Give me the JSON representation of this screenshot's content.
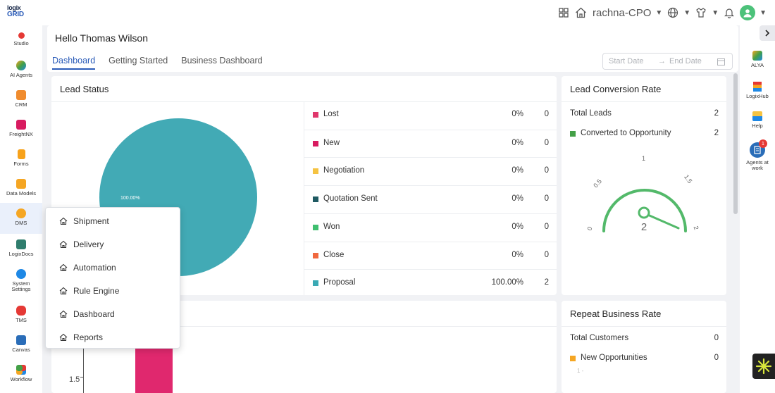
{
  "logo": {
    "line1": "logix",
    "line2": "GRID"
  },
  "topbar": {
    "user_label": "rachna-CPO"
  },
  "sidebar": {
    "items": [
      {
        "label": "Studio",
        "color": "#e53935"
      },
      {
        "label": "AI Agents",
        "color": "#f5a623"
      },
      {
        "label": "CRM",
        "color": "#f08c2e"
      },
      {
        "label": "FreightNX",
        "color": "#d81b60"
      },
      {
        "label": "Forms",
        "color": "#f7a21b"
      },
      {
        "label": "Data Models",
        "color": "#f5a623"
      },
      {
        "label": "DMS",
        "color": "#f5a623"
      },
      {
        "label": "LogixDocs",
        "color": "#2f7d6d"
      },
      {
        "label": "System Settings",
        "color": "#1e88e5"
      },
      {
        "label": "TMS",
        "color": "#e53935"
      },
      {
        "label": "Canvas",
        "color": "#2a6db8"
      },
      {
        "label": "Workflow",
        "color": "#43a047"
      }
    ]
  },
  "right_sidebar": {
    "items": [
      {
        "label": "ALYA"
      },
      {
        "label": "LogixHub"
      },
      {
        "label": "Help"
      },
      {
        "label": "Agents at work",
        "badge": "1"
      }
    ]
  },
  "header": {
    "greeting": "Hello Thomas Wilson",
    "tabs": [
      "Dashboard",
      "Getting Started",
      "Business Dashboard"
    ],
    "start_date_placeholder": "Start Date",
    "end_date_placeholder": "End Date"
  },
  "lead_status": {
    "title": "Lead Status",
    "pie_label": "100.00%",
    "rows": [
      {
        "name": "Lost",
        "percent": "0%",
        "count": "0",
        "color": "#e0376c"
      },
      {
        "name": "New",
        "percent": "0%",
        "count": "0",
        "color": "#d81b60"
      },
      {
        "name": "Negotiation",
        "percent": "0%",
        "count": "0",
        "color": "#f5c342"
      },
      {
        "name": "Quotation Sent",
        "percent": "0%",
        "count": "0",
        "color": "#1f5a62"
      },
      {
        "name": "Won",
        "percent": "0%",
        "count": "0",
        "color": "#3fbf6f"
      },
      {
        "name": "Close",
        "percent": "0%",
        "count": "0",
        "color": "#f0683f"
      },
      {
        "name": "Proposal",
        "percent": "100.00%",
        "count": "2",
        "color": "#3aa9b4"
      }
    ]
  },
  "lead_conversion": {
    "title": "Lead Conversion Rate",
    "total_label": "Total Leads",
    "total_value": "2",
    "converted_label": "Converted to Opportunity",
    "converted_value": "2",
    "converted_color": "#43a047",
    "gauge": {
      "min_label": "0",
      "q1_label": "0.5",
      "mid_label": "1",
      "q3_label": "1.5",
      "max_label": "2",
      "value_label": "2",
      "value": 2,
      "max": 2
    }
  },
  "repeat_business": {
    "title": "Repeat Business Rate",
    "total_label": "Total Customers",
    "total_value": "0",
    "opp_label": "New Opportunities",
    "opp_value": "0",
    "opp_color": "#f5a623",
    "axis_fragment": "1 -"
  },
  "bottom_chart": {
    "y_tick": "1.5",
    "bar_color": "#e0286e"
  },
  "dms_menu": {
    "items": [
      "Shipment",
      "Delivery",
      "Automation",
      "Rule Engine",
      "Dashboard",
      "Reports"
    ]
  }
}
